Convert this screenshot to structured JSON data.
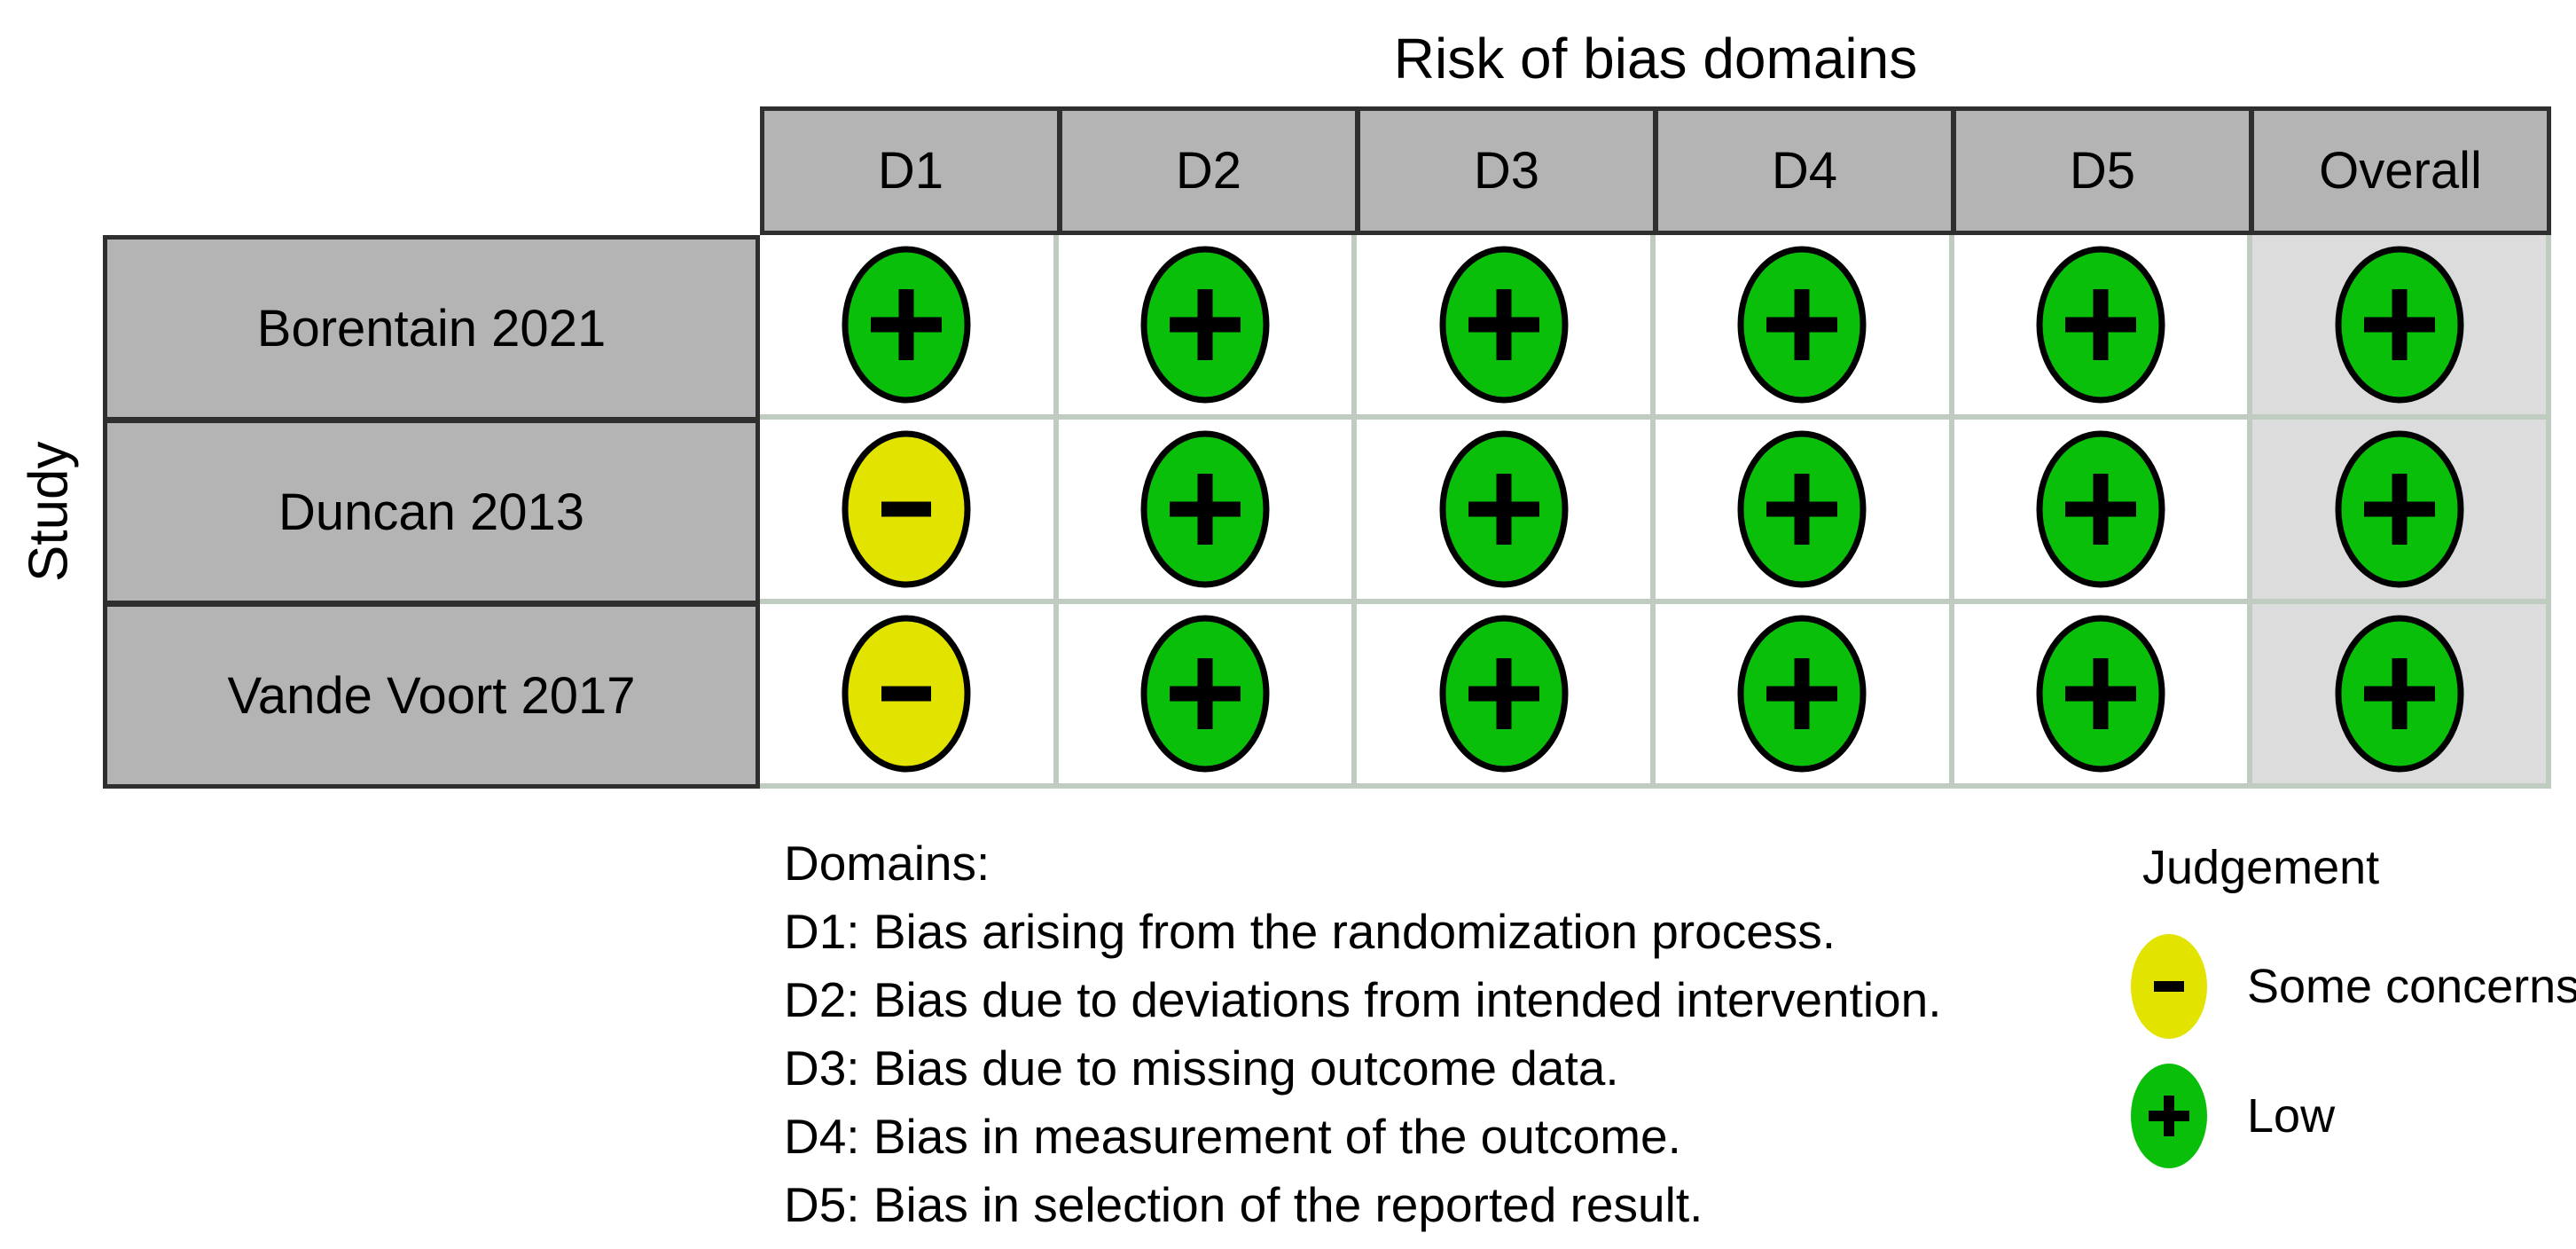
{
  "figure": {
    "title": "Risk of bias domains",
    "y_axis_label": "Study"
  },
  "table": {
    "columns": [
      "D1",
      "D2",
      "D3",
      "D4",
      "D5",
      "Overall"
    ],
    "rows": [
      {
        "study": "Borentain 2021",
        "judgements": [
          "low",
          "low",
          "low",
          "low",
          "low",
          "low"
        ]
      },
      {
        "study": "Duncan 2013",
        "judgements": [
          "some_concerns",
          "low",
          "low",
          "low",
          "low",
          "low"
        ]
      },
      {
        "study": "Vande Voort 2017",
        "judgements": [
          "some_concerns",
          "low",
          "low",
          "low",
          "low",
          "low"
        ]
      }
    ]
  },
  "domains_legend": {
    "heading": "Domains:",
    "entries": [
      "D1: Bias arising from the randomization process.",
      "D2: Bias due to deviations from intended intervention.",
      "D3: Bias due to missing outcome data.",
      "D4: Bias in measurement of the outcome.",
      "D5: Bias in selection of the reported result."
    ]
  },
  "judgement_legend": {
    "title": "Judgement",
    "items": [
      {
        "key": "some_concerns",
        "symbol": "-",
        "label": "Some concerns",
        "color": "#e3e300"
      },
      {
        "key": "low",
        "symbol": "+",
        "label": "Low",
        "color": "#0abf0a"
      }
    ]
  },
  "colors": {
    "low": "#0abf0a",
    "some_concerns": "#e3e300",
    "header_bg": "#b4b4b4",
    "overall_col_bg": "#dcdcdc",
    "grid_line": "#c0ccc0",
    "dark_border": "#2f2f2f",
    "symbol": "#000000",
    "circle_outline": "#000000"
  },
  "chart_data": {
    "type": "table",
    "title": "Risk of bias domains",
    "row_axis_label": "Study",
    "columns": [
      "D1",
      "D2",
      "D3",
      "D4",
      "D5",
      "Overall"
    ],
    "rows": [
      "Borentain 2021",
      "Duncan 2013",
      "Vande Voort 2017"
    ],
    "values": [
      [
        "Low",
        "Low",
        "Low",
        "Low",
        "Low",
        "Low"
      ],
      [
        "Some concerns",
        "Low",
        "Low",
        "Low",
        "Low",
        "Low"
      ],
      [
        "Some concerns",
        "Low",
        "Low",
        "Low",
        "Low",
        "Low"
      ]
    ],
    "judgement_levels": [
      {
        "label": "Some concerns",
        "symbol": "-",
        "color": "#e3e300"
      },
      {
        "label": "Low",
        "symbol": "+",
        "color": "#0abf0a"
      }
    ],
    "domain_definitions": [
      "D1: Bias arising from the randomization process.",
      "D2: Bias due to deviations from intended intervention.",
      "D3: Bias due to missing outcome data.",
      "D4: Bias in measurement of the outcome.",
      "D5: Bias in selection of the reported result."
    ],
    "legend_position": "bottom-right"
  }
}
